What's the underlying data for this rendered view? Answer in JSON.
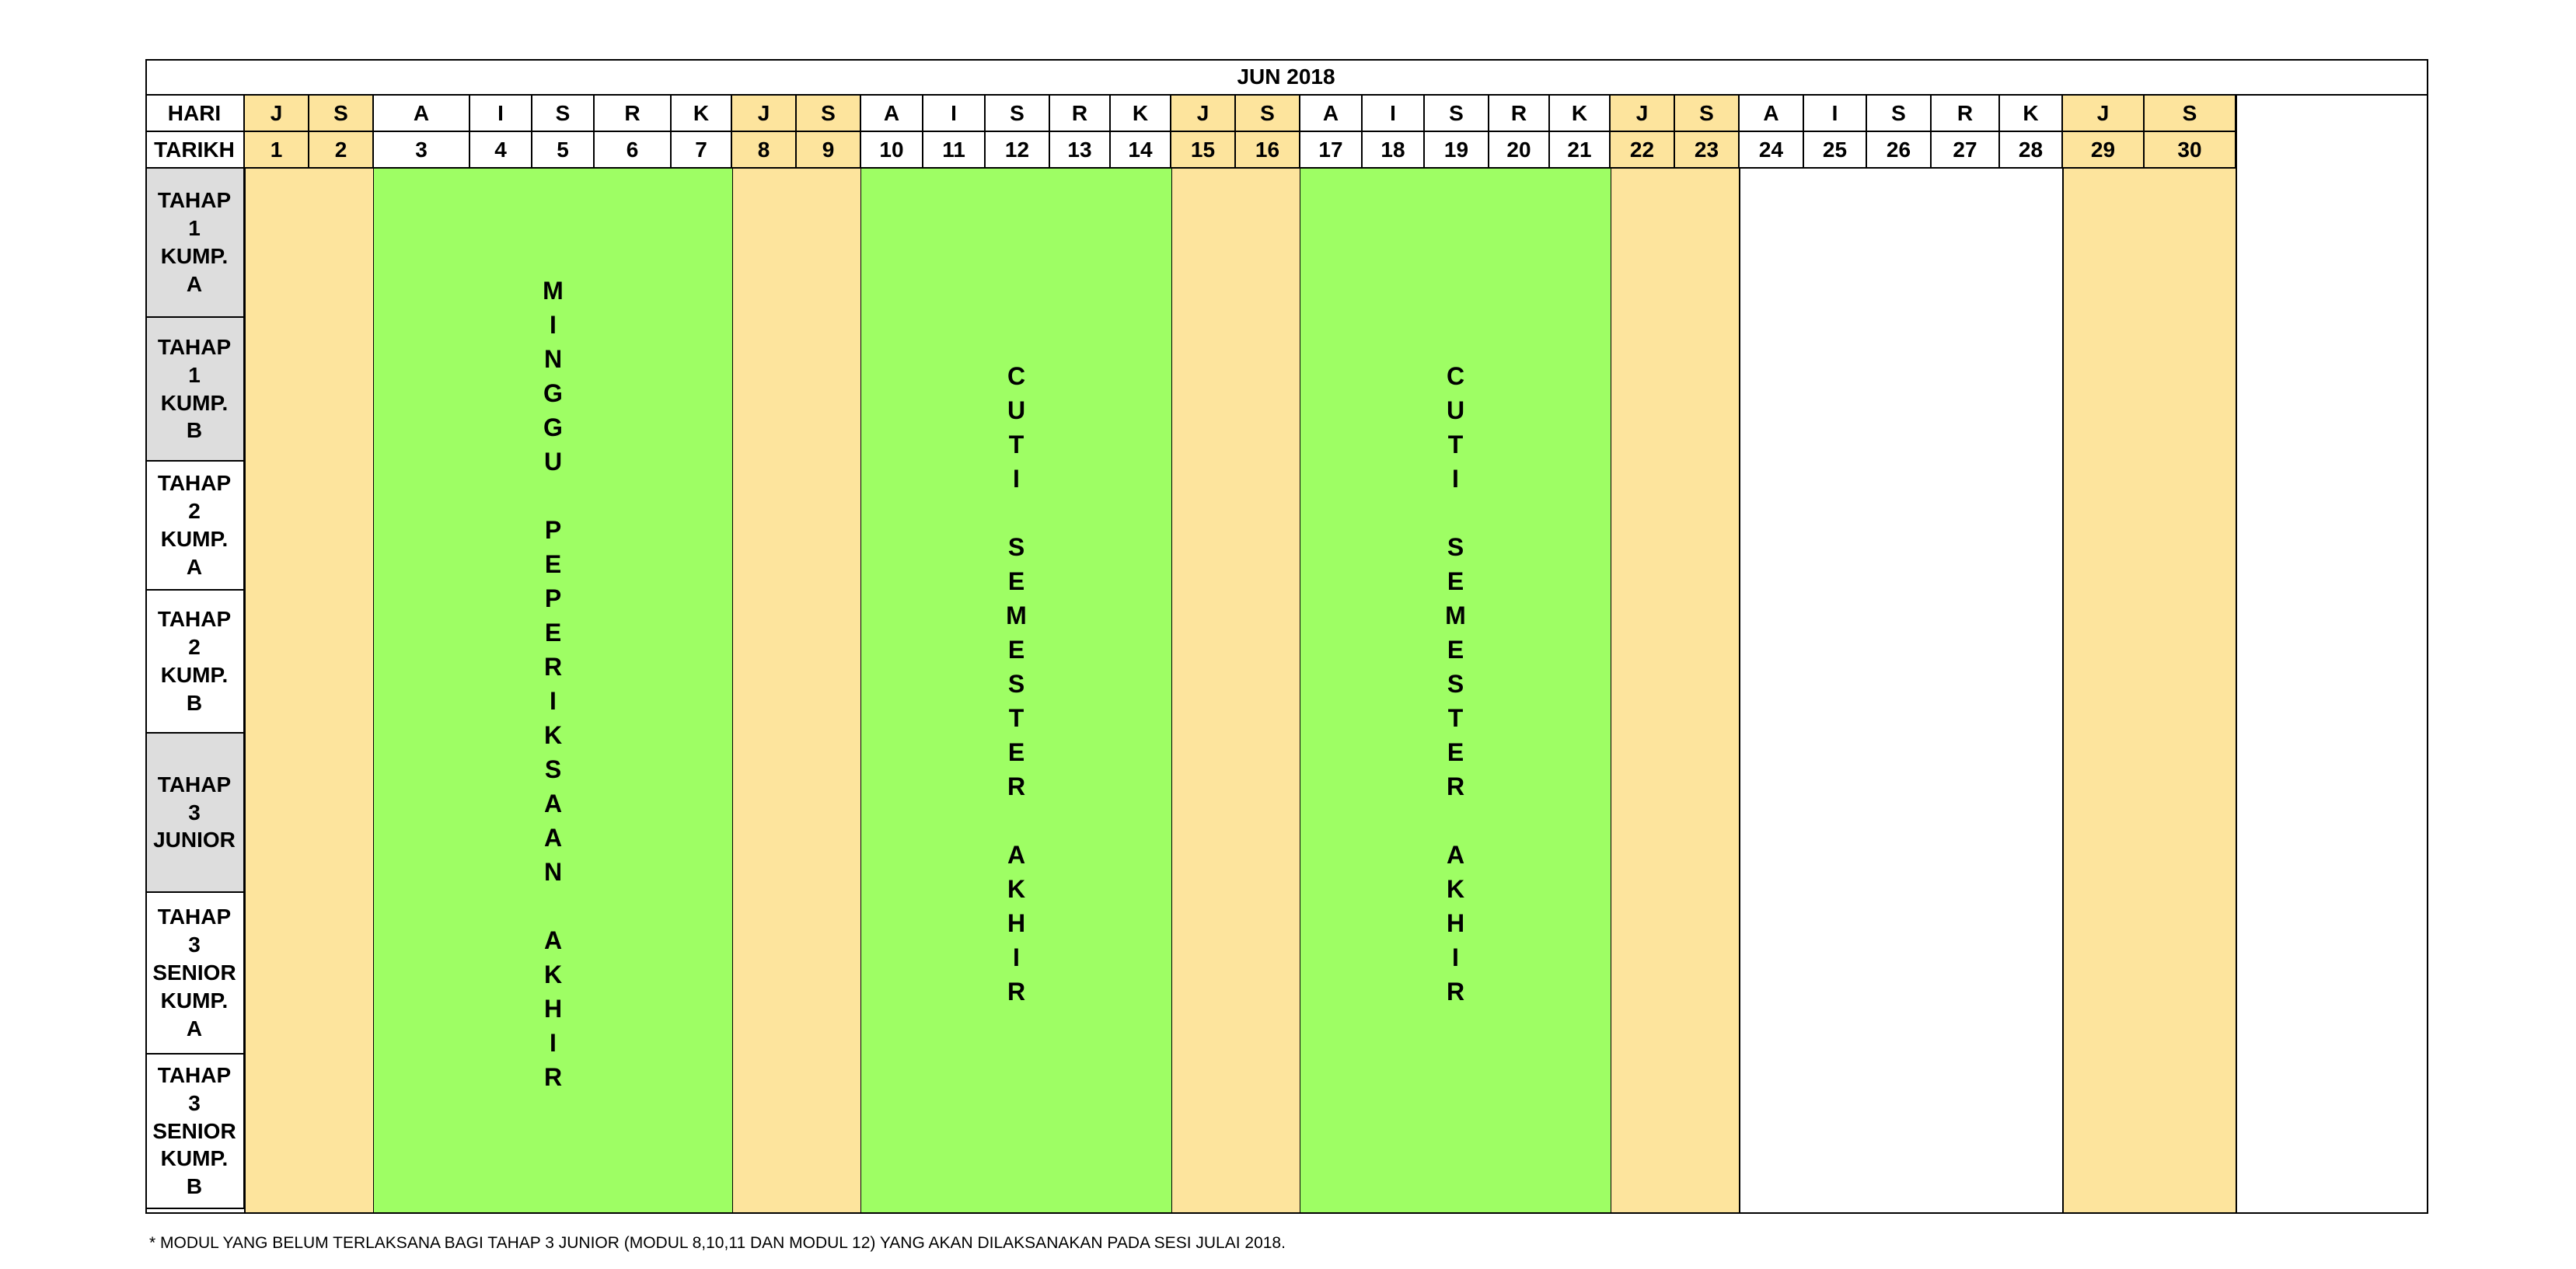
{
  "month_title": "JUN 2018",
  "row_labels": {
    "hari": "HARI",
    "tarikh": "TARIKH"
  },
  "days": [
    {
      "day": "J",
      "date": "1",
      "weekend": true
    },
    {
      "day": "S",
      "date": "2",
      "weekend": true
    },
    {
      "day": "A",
      "date": "3",
      "weekend": false
    },
    {
      "day": "I",
      "date": "4",
      "weekend": false
    },
    {
      "day": "S",
      "date": "5",
      "weekend": false
    },
    {
      "day": "R",
      "date": "6",
      "weekend": false
    },
    {
      "day": "K",
      "date": "7",
      "weekend": false
    },
    {
      "day": "J",
      "date": "8",
      "weekend": true
    },
    {
      "day": "S",
      "date": "9",
      "weekend": true
    },
    {
      "day": "A",
      "date": "10",
      "weekend": false
    },
    {
      "day": "I",
      "date": "11",
      "weekend": false
    },
    {
      "day": "S",
      "date": "12",
      "weekend": false
    },
    {
      "day": "R",
      "date": "13",
      "weekend": false
    },
    {
      "day": "K",
      "date": "14",
      "weekend": false
    },
    {
      "day": "J",
      "date": "15",
      "weekend": true
    },
    {
      "day": "S",
      "date": "16",
      "weekend": true
    },
    {
      "day": "A",
      "date": "17",
      "weekend": false
    },
    {
      "day": "I",
      "date": "18",
      "weekend": false
    },
    {
      "day": "S",
      "date": "19",
      "weekend": false
    },
    {
      "day": "R",
      "date": "20",
      "weekend": false
    },
    {
      "day": "K",
      "date": "21",
      "weekend": false
    },
    {
      "day": "J",
      "date": "22",
      "weekend": true
    },
    {
      "day": "S",
      "date": "23",
      "weekend": true
    },
    {
      "day": "A",
      "date": "24",
      "weekend": false
    },
    {
      "day": "I",
      "date": "25",
      "weekend": false
    },
    {
      "day": "S",
      "date": "26",
      "weekend": false
    },
    {
      "day": "R",
      "date": "27",
      "weekend": false
    },
    {
      "day": "K",
      "date": "28",
      "weekend": false
    },
    {
      "day": "J",
      "date": "29",
      "weekend": true
    },
    {
      "day": "S",
      "date": "30",
      "weekend": true
    }
  ],
  "groups": [
    {
      "label": "TAHAP\n1\nKUMP.\nA",
      "shaded": true
    },
    {
      "label": "TAHAP\n1\nKUMP.\nB",
      "shaded": true
    },
    {
      "label": "TAHAP\n2\nKUMP.\nA",
      "shaded": false
    },
    {
      "label": "TAHAP\n2\nKUMP.\nB",
      "shaded": false
    },
    {
      "label": "TAHAP\n3\nJUNIOR",
      "shaded": true
    },
    {
      "label": "TAHAP\n3\nSENIOR\nKUMP.\nA",
      "shaded": false
    },
    {
      "label": "TAHAP\n3\nSENIOR\nKUMP.\nB",
      "shaded": false
    }
  ],
  "events": [
    {
      "text": "MINGGU PEPERIKSAAN AKHIR",
      "from_date": 3,
      "to_date": 7
    },
    {
      "text": "CUTI SEMESTER AKHIR",
      "from_date": 10,
      "to_date": 14
    },
    {
      "text": "CUTI SEMESTER AKHIR",
      "from_date": 17,
      "to_date": 21
    }
  ],
  "colors": {
    "weekend": "#fde49d",
    "event": "#9efe64",
    "label_shade": "#dddddd",
    "border": "#000000"
  },
  "footnote": "* MODUL YANG BELUM TERLAKSANA BAGI TAHAP 3 JUNIOR (MODUL 8,10,11 DAN MODUL 12) YANG AKAN DILAKSANAKAN PADA SESI JULAI 2018."
}
